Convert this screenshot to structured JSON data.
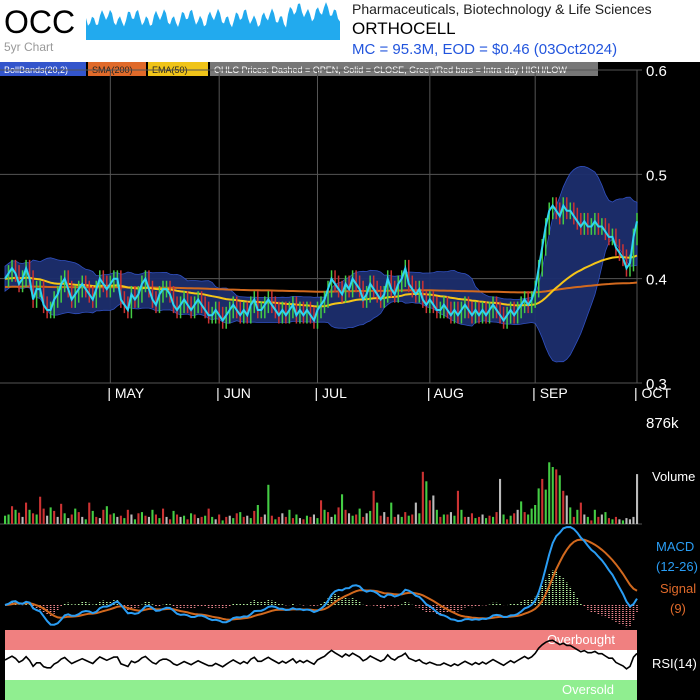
{
  "header": {
    "ticker": "OCC",
    "subtitle": "5yr Chart",
    "sector": "Pharmaceuticals, Biotechnology & Life Sciences",
    "company": "ORTHOCELL",
    "stats": "MC = 95.3M, EOD = $0.46 (03Oct2024)"
  },
  "legend": [
    {
      "label": "BollBands(20,2)",
      "color": "#3355cc",
      "text_color": "#ffffff"
    },
    {
      "label": "SMA(200)",
      "color": "#e06a2a",
      "text_color": "#222222"
    },
    {
      "label": "EMA(50)",
      "color": "#f0c419",
      "text_color": "#222222"
    },
    {
      "label": "OHLC Prices: Dashed = OPEN, Solid = CLOSE, Green/Red bars = Intra-day HIGH/LOW",
      "color": "#777777",
      "text_color": "#ffffff"
    }
  ],
  "colors": {
    "close_line": "#2fd5f0",
    "bollinger_fill": "#1d2f6e",
    "sma": "#d2691e",
    "ema": "#f5c518",
    "up": "#44cc44",
    "down": "#cc3333",
    "macd": "#2a9df4",
    "signal": "#d2691e",
    "overbought": "#f08080",
    "oversold": "#90ee90",
    "rsi": "#000000",
    "axis_text": "#ffffff",
    "side_text_blue": "#2a9df4",
    "side_text_orange": "#e06a2a"
  },
  "labels": {
    "volume": "Volume",
    "volume_max": "876k",
    "macd_line1": "MACD",
    "macd_line2": "(12-26)",
    "signal_line1": "Signal",
    "signal_line2": "(9)",
    "overbought": "Overbought",
    "oversold": "Oversold",
    "rsi": "RSI(14)"
  },
  "chart_data": {
    "type": "line",
    "ylim": [
      0.3,
      0.6
    ],
    "y_ticks": [
      "0.6",
      "0.5",
      "0.4",
      "0.3"
    ],
    "y_tick_values": [
      0.6,
      0.5,
      0.4,
      0.3
    ],
    "x_ticks": [
      "| MAY",
      "| JUN",
      "| JUL",
      "| AUG",
      "| SEP",
      "| OCT"
    ],
    "x_tick_index": [
      30,
      61,
      89,
      121,
      151,
      180
    ],
    "close": [
      0.4,
      0.405,
      0.41,
      0.405,
      0.395,
      0.4,
      0.41,
      0.4,
      0.38,
      0.39,
      0.39,
      0.375,
      0.37,
      0.37,
      0.38,
      0.385,
      0.395,
      0.4,
      0.39,
      0.38,
      0.385,
      0.39,
      0.395,
      0.39,
      0.385,
      0.38,
      0.39,
      0.4,
      0.395,
      0.39,
      0.395,
      0.4,
      0.4,
      0.38,
      0.375,
      0.37,
      0.385,
      0.38,
      0.385,
      0.395,
      0.4,
      0.39,
      0.38,
      0.375,
      0.385,
      0.39,
      0.39,
      0.385,
      0.375,
      0.37,
      0.375,
      0.38,
      0.375,
      0.37,
      0.375,
      0.38,
      0.375,
      0.37,
      0.365,
      0.365,
      0.37,
      0.365,
      0.36,
      0.365,
      0.37,
      0.375,
      0.37,
      0.365,
      0.37,
      0.365,
      0.375,
      0.38,
      0.37,
      0.37,
      0.375,
      0.38,
      0.375,
      0.37,
      0.365,
      0.37,
      0.365,
      0.37,
      0.375,
      0.365,
      0.37,
      0.365,
      0.37,
      0.365,
      0.36,
      0.37,
      0.375,
      0.38,
      0.39,
      0.4,
      0.395,
      0.39,
      0.385,
      0.395,
      0.39,
      0.4,
      0.395,
      0.39,
      0.38,
      0.385,
      0.395,
      0.39,
      0.385,
      0.38,
      0.385,
      0.4,
      0.39,
      0.385,
      0.395,
      0.4,
      0.41,
      0.395,
      0.39,
      0.385,
      0.39,
      0.38,
      0.375,
      0.38,
      0.375,
      0.37,
      0.37,
      0.375,
      0.37,
      0.365,
      0.37,
      0.365,
      0.37,
      0.375,
      0.37,
      0.365,
      0.37,
      0.365,
      0.37,
      0.365,
      0.37,
      0.375,
      0.37,
      0.365,
      0.36,
      0.365,
      0.37,
      0.365,
      0.37,
      0.375,
      0.38,
      0.375,
      0.38,
      0.39,
      0.41,
      0.43,
      0.45,
      0.465,
      0.47,
      0.465,
      0.46,
      0.47,
      0.465,
      0.465,
      0.46,
      0.455,
      0.45,
      0.455,
      0.45,
      0.45,
      0.455,
      0.45,
      0.45,
      0.445,
      0.44,
      0.44,
      0.43,
      0.425,
      0.42,
      0.41,
      0.415,
      0.44,
      0.455
    ],
    "volume_k": [
      70,
      80,
      150,
      120,
      95,
      60,
      180,
      120,
      90,
      80,
      230,
      130,
      70,
      140,
      110,
      60,
      170,
      90,
      50,
      80,
      130,
      100,
      60,
      40,
      180,
      110,
      60,
      50,
      120,
      150,
      80,
      90,
      60,
      70,
      50,
      120,
      80,
      40,
      90,
      100,
      70,
      60,
      120,
      80,
      50,
      130,
      60,
      40,
      110,
      80,
      60,
      70,
      40,
      90,
      80,
      50,
      60,
      70,
      130,
      60,
      40,
      80,
      30,
      60,
      70,
      50,
      90,
      100,
      60,
      70,
      50,
      110,
      160,
      60,
      80,
      330,
      70,
      40,
      60,
      90,
      60,
      120,
      50,
      80,
      50,
      40,
      70,
      60,
      80,
      50,
      200,
      120,
      100,
      60,
      80,
      140,
      250,
      120,
      90,
      70,
      80,
      130,
      60,
      90,
      110,
      280,
      180,
      70,
      100,
      60,
      180,
      60,
      80,
      60,
      100,
      70,
      80,
      180,
      90,
      440,
      360,
      200,
      240,
      120,
      60,
      80,
      80,
      100,
      70,
      280,
      120,
      60,
      60,
      90,
      50,
      60,
      80,
      50,
      70,
      60,
      100,
      380,
      80,
      40,
      70,
      90,
      120,
      190,
      100,
      80,
      130,
      160,
      300,
      380,
      290,
      520,
      480,
      460,
      410,
      280,
      240,
      140,
      60,
      120,
      180,
      80,
      60,
      30,
      120,
      60,
      80,
      100,
      50,
      40,
      60,
      40,
      30,
      50,
      40,
      60,
      420
    ],
    "volume_color": [
      "g",
      "g",
      "r",
      "g",
      "r",
      "w",
      "r",
      "g",
      "r",
      "g",
      "r",
      "r",
      "w",
      "g",
      "r",
      "w",
      "r",
      "g",
      "w",
      "r",
      "g",
      "r",
      "w",
      "g",
      "r",
      "g",
      "r",
      "w",
      "r",
      "g",
      "r",
      "g",
      "w",
      "r",
      "g",
      "r",
      "w",
      "g",
      "r",
      "g",
      "r",
      "w",
      "g",
      "r",
      "g",
      "r",
      "w",
      "r",
      "g",
      "r",
      "w",
      "g",
      "r",
      "g",
      "r",
      "w",
      "r",
      "g",
      "r",
      "g",
      "w",
      "r",
      "g",
      "r",
      "w",
      "g",
      "r",
      "g",
      "r",
      "w",
      "g",
      "r",
      "g",
      "r",
      "w",
      "g",
      "r",
      "g",
      "r",
      "w",
      "r",
      "g",
      "r",
      "g",
      "w",
      "r",
      "g",
      "r",
      "w",
      "g",
      "r",
      "g",
      "r",
      "w",
      "g",
      "r",
      "g",
      "r",
      "w",
      "g",
      "r",
      "g",
      "r",
      "w",
      "g",
      "r",
      "g",
      "r",
      "w",
      "r",
      "g",
      "r",
      "w",
      "g",
      "r",
      "g",
      "r",
      "w",
      "g",
      "r",
      "g",
      "r",
      "w",
      "g",
      "r",
      "g",
      "r",
      "w",
      "g",
      "r",
      "g",
      "r",
      "w",
      "r",
      "g",
      "r",
      "w",
      "g",
      "r",
      "g",
      "r",
      "w",
      "g",
      "r",
      "g",
      "r",
      "w",
      "g",
      "r",
      "g",
      "g",
      "g",
      "g",
      "r",
      "g",
      "g",
      "g",
      "r",
      "g",
      "r",
      "w",
      "g",
      "r",
      "g",
      "r",
      "w",
      "g",
      "r",
      "g",
      "r",
      "w",
      "g",
      "r",
      "g",
      "r",
      "w",
      "g"
    ]
  }
}
